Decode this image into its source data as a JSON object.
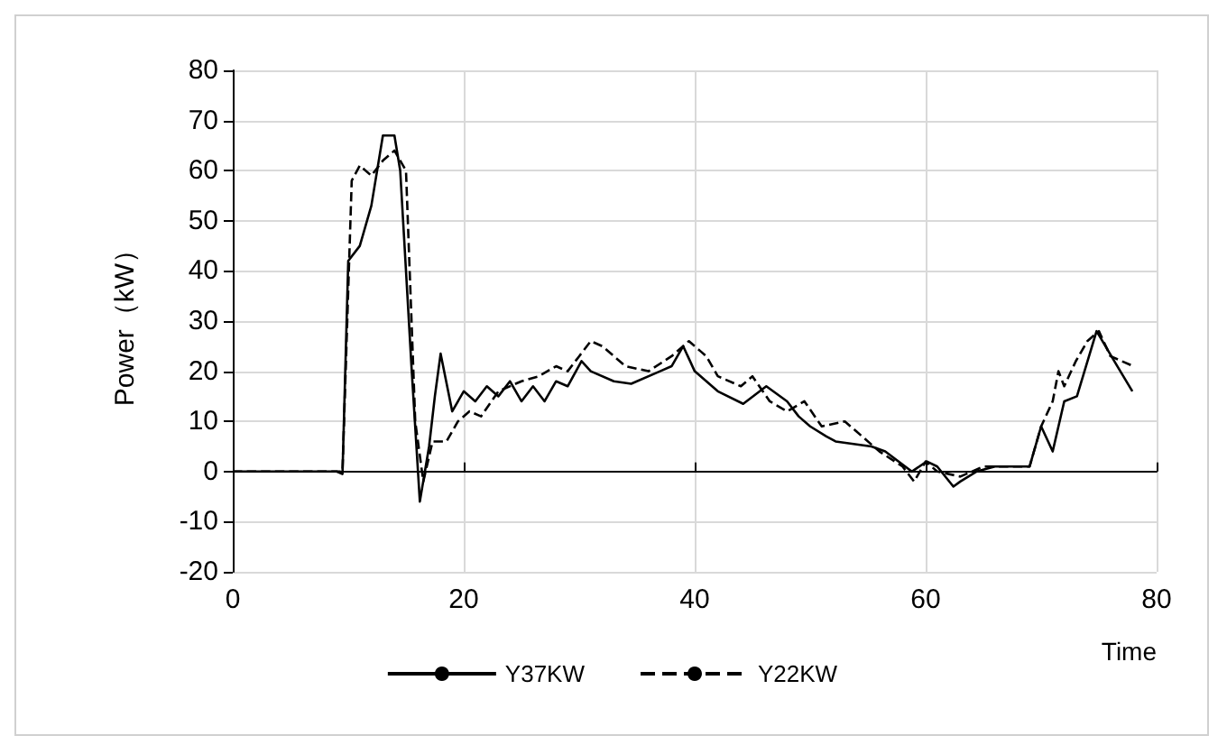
{
  "chart_data": {
    "type": "line",
    "xlabel": "Time",
    "ylabel": "Power（kW）",
    "xlim": [
      0,
      80
    ],
    "xticks": [
      0,
      20,
      40,
      60,
      80
    ],
    "ylim": [
      -20,
      80
    ],
    "yticks": [
      -20,
      -10,
      0,
      10,
      20,
      30,
      40,
      50,
      60,
      70,
      80
    ],
    "grid": true,
    "legend": "bottom",
    "marker": "none",
    "series": [
      {
        "name": "Y37KW",
        "color": "#000000",
        "line_style": "solid",
        "x": [
          0,
          9,
          9.5,
          10,
          11,
          12,
          13,
          14,
          14.5,
          15.5,
          16.2,
          17,
          17.5,
          18,
          19,
          20,
          21,
          22,
          23,
          24,
          25,
          26,
          27,
          28,
          29,
          30.2,
          31,
          33,
          34.5,
          37,
          38,
          39,
          40,
          42,
          44.2,
          46.2,
          48,
          49,
          50,
          51.4,
          52.2,
          55.3,
          56.5,
          58.8,
          60.1,
          61,
          62.4,
          63,
          64.4,
          66,
          69,
          70,
          71,
          72,
          73.1,
          74.8,
          76.6,
          77.9
        ],
        "values": [
          0,
          0,
          -0.5,
          42,
          45,
          53,
          67,
          67,
          60,
          20,
          -6,
          5,
          15,
          23.5,
          12,
          16,
          14,
          17,
          15,
          18,
          14,
          17,
          14,
          18,
          17,
          22,
          20,
          18,
          17.5,
          20,
          21,
          25,
          20,
          16,
          13.5,
          17,
          14,
          11,
          9,
          7,
          6,
          5,
          4,
          0,
          2,
          1,
          -3,
          -2,
          0,
          1,
          1,
          9,
          4,
          14,
          15,
          28,
          21,
          16
        ]
      },
      {
        "name": "Y22KW",
        "color": "#000000",
        "line_style": "dashed",
        "x": [
          0,
          9,
          9.5,
          10.3,
          11,
          12,
          13,
          14,
          15,
          15.8,
          16.5,
          17.3,
          18.5,
          19.5,
          20.5,
          21.5,
          23,
          25,
          26.5,
          28,
          29,
          30,
          31,
          32,
          34,
          36,
          38,
          39.5,
          40.5,
          41,
          42,
          44,
          45,
          46.5,
          48,
          49.5,
          51,
          53,
          54,
          56,
          58,
          59,
          60,
          61,
          63,
          65,
          67,
          69,
          70,
          71,
          71.5,
          72,
          73,
          74,
          75,
          76,
          77,
          78
        ],
        "values": [
          0,
          0,
          0,
          58,
          61,
          59,
          62,
          64,
          60,
          10,
          -2,
          6,
          6,
          10,
          12,
          11,
          16,
          18,
          19,
          21,
          20,
          23,
          26,
          25,
          21,
          20,
          23,
          26,
          24,
          23,
          19,
          17,
          19,
          14,
          12,
          14,
          9,
          10,
          8,
          4,
          1,
          -2,
          2,
          0,
          -1,
          1,
          1,
          1,
          9,
          14,
          20,
          17,
          22,
          26,
          28,
          23,
          22,
          21
        ]
      }
    ]
  }
}
